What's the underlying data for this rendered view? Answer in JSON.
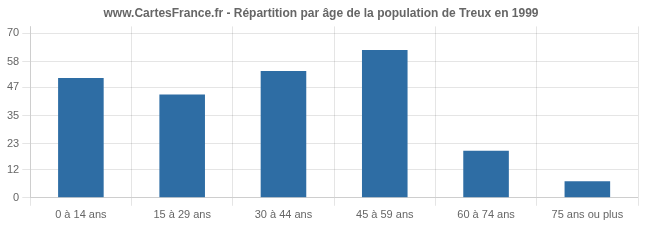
{
  "chart_data": {
    "type": "bar",
    "title": "www.CartesFrance.fr - Répartition par âge de la population de Treux en 1999",
    "categories": [
      "0 à 14 ans",
      "15 à 29 ans",
      "30 à 44 ans",
      "45 à 59 ans",
      "60 à 74 ans",
      "75 ans ou plus"
    ],
    "values": [
      51,
      44,
      54,
      63,
      20,
      7
    ],
    "color": "#2e6da4",
    "ylim": [
      0,
      73
    ],
    "yticks": [
      0,
      12,
      23,
      35,
      47,
      58,
      70
    ],
    "grid": true
  }
}
